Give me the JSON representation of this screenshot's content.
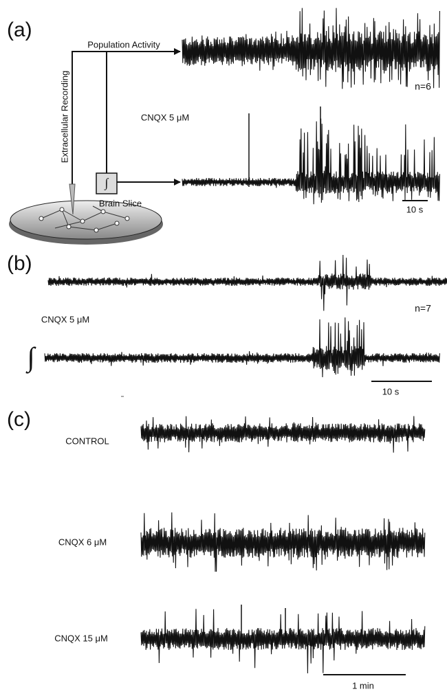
{
  "panel_a": {
    "label": "(a)",
    "pathway_label": "Population Activity",
    "recording_label": "Extracellular Recording",
    "integrator_symbol": "∫",
    "slice_label": "Brain Slice",
    "n_label": "n=6",
    "condition_label": "CNQX 5 μM",
    "scale_label": "10 s"
  },
  "panel_b": {
    "label": "(b)",
    "n_label": "n=7",
    "condition_label": "CNQX 5 μM",
    "integrator_symbol": "∫",
    "scale_label": "10 s"
  },
  "panel_c": {
    "label": "(c)",
    "trace_labels": [
      "CONTROL",
      "CNQX  6 μM",
      "CNQX 15 μM"
    ],
    "scale_label": "1 min"
  }
}
